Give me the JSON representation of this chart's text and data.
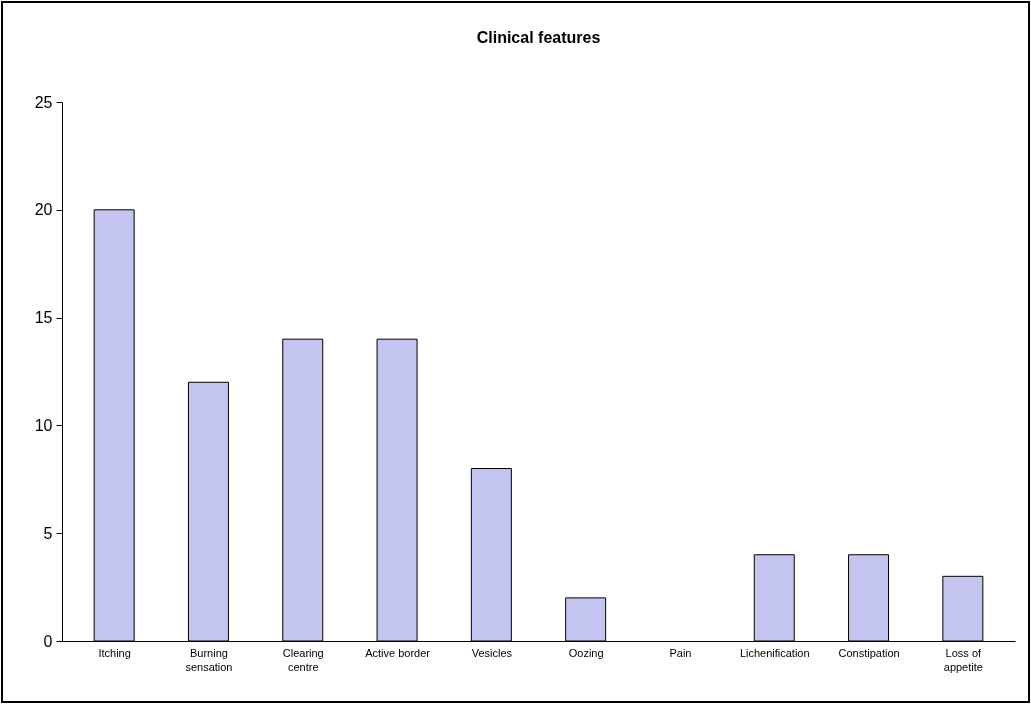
{
  "chart_data": {
    "type": "bar",
    "title": "Clinical features",
    "categories": [
      "Itching",
      "Burning sensation",
      "Clearing centre",
      "Active border",
      "Vesicles",
      "Oozing",
      "Pain",
      "Lichenification",
      "Constipation",
      "Loss of appetite"
    ],
    "values": [
      20,
      12,
      14,
      14,
      8,
      2,
      0,
      4,
      4,
      3
    ],
    "color": "#c4c4f0",
    "ylim": [
      0,
      25
    ],
    "yticks": [
      0,
      5,
      10,
      15,
      20,
      25
    ],
    "grid": false
  }
}
